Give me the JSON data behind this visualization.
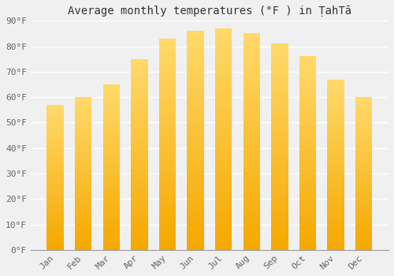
{
  "title": "Average monthly temperatures (°F ) in ṬahTā",
  "months": [
    "Jan",
    "Feb",
    "Mar",
    "Apr",
    "May",
    "Jun",
    "Jul",
    "Aug",
    "Sep",
    "Oct",
    "Nov",
    "Dec"
  ],
  "values": [
    57,
    60,
    65,
    75,
    83,
    86,
    87,
    85,
    81,
    76,
    67,
    60
  ],
  "bar_color_bottom": "#F5A800",
  "bar_color_top": "#FFD96A",
  "ylim": [
    0,
    90
  ],
  "yticks": [
    0,
    10,
    20,
    30,
    40,
    50,
    60,
    70,
    80,
    90
  ],
  "ytick_labels": [
    "0°F",
    "10°F",
    "20°F",
    "30°F",
    "40°F",
    "50°F",
    "60°F",
    "70°F",
    "80°F",
    "90°F"
  ],
  "background_color": "#f0f0f0",
  "grid_color": "#ffffff",
  "title_fontsize": 10,
  "tick_fontsize": 8,
  "bar_width": 0.6,
  "figsize": [
    5.0,
    3.5
  ],
  "dpi": 100
}
